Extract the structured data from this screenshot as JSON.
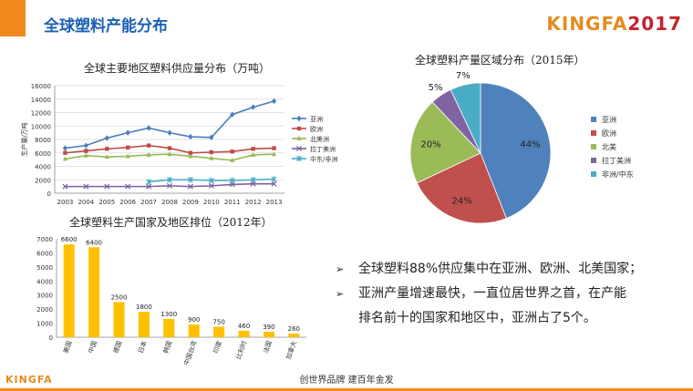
{
  "header": {
    "title": "全球塑料产能分布",
    "brand_main": "KINGFA",
    "brand_year": "2017"
  },
  "footer": {
    "logo": "KINGFA",
    "slogan": "创世界品牌 建百年金发"
  },
  "bullets": [
    {
      "mark": "➢",
      "text": "全球塑料88%供应集中在亚洲、欧洲、北美国家；"
    },
    {
      "mark": "➢",
      "text": "亚洲产量增速最快，一直位居世界之首，在产能",
      "cont": "排名前十的国家和地区中，亚洲占了5个。"
    }
  ],
  "colors": {
    "accent": "#f08a1e",
    "title_blue": "#1c5fb5",
    "bar": "#ffc000"
  },
  "chart_data": [
    {
      "type": "line",
      "title": "全球主要地区塑料供应量分布（万吨）",
      "ylabel": "生产量/万吨",
      "x": [
        "2003",
        "2004",
        "2005",
        "2006",
        "2007",
        "2008",
        "2009",
        "2010",
        "2011",
        "2012",
        "2013"
      ],
      "ylim": [
        0,
        16000
      ],
      "yticks": [
        0,
        2000,
        4000,
        6000,
        8000,
        10000,
        12000,
        14000,
        16000
      ],
      "grid": true,
      "legend": "right",
      "series": [
        {
          "name": "亚洲",
          "color": "#4a7ebb",
          "marker": "diamond",
          "values": [
            6700,
            7100,
            8200,
            9000,
            9700,
            9000,
            8400,
            8300,
            11700,
            12800,
            13700
          ]
        },
        {
          "name": "欧洲",
          "color": "#be4b48",
          "marker": "square",
          "values": [
            6000,
            6300,
            6600,
            6800,
            7100,
            6700,
            6000,
            6100,
            6200,
            6600,
            6700
          ]
        },
        {
          "name": "北美洲",
          "color": "#98b954",
          "marker": "triangle",
          "values": [
            5100,
            5600,
            5400,
            5500,
            5700,
            5800,
            5500,
            5200,
            4900,
            5700,
            5800
          ]
        },
        {
          "name": "拉丁美洲",
          "color": "#7d60a0",
          "marker": "x",
          "values": [
            1000,
            1000,
            1000,
            1000,
            1000,
            1100,
            1000,
            1100,
            1300,
            1400,
            1400
          ]
        },
        {
          "name": "中东/非洲",
          "color": "#46aac5",
          "marker": "star",
          "values": [
            null,
            null,
            null,
            null,
            1700,
            2000,
            2000,
            1900,
            1900,
            2000,
            2100
          ]
        }
      ]
    },
    {
      "type": "pie",
      "title": "全球塑料产量区域分布（2015年）",
      "legend": "right",
      "slices": [
        {
          "name": "亚洲",
          "value": 44,
          "label": "44%",
          "color": "#4f81bd"
        },
        {
          "name": "欧洲",
          "value": 24,
          "label": "24%",
          "color": "#c0504d"
        },
        {
          "name": "北美",
          "value": 20,
          "label": "20%",
          "color": "#9bbb59"
        },
        {
          "name": "拉丁美洲",
          "value": 5,
          "label": "5%",
          "color": "#8064a2"
        },
        {
          "name": "非洲/中东",
          "value": 7,
          "label": "7%",
          "color": "#4bacc6"
        }
      ]
    },
    {
      "type": "bar",
      "title": "全球塑料生产国家及地区排位（2012年）",
      "categories": [
        "美国",
        "中国",
        "德国",
        "日本",
        "韩国",
        "中国台湾",
        "印度",
        "比利时",
        "法国",
        "加拿大"
      ],
      "values": [
        6600,
        6400,
        2500,
        1800,
        1300,
        900,
        750,
        460,
        390,
        260
      ],
      "ylim": [
        0,
        7000
      ],
      "yticks": [
        0,
        1000,
        2000,
        3000,
        4000,
        5000,
        6000,
        7000
      ],
      "grid": false,
      "color": "#ffc000"
    }
  ]
}
